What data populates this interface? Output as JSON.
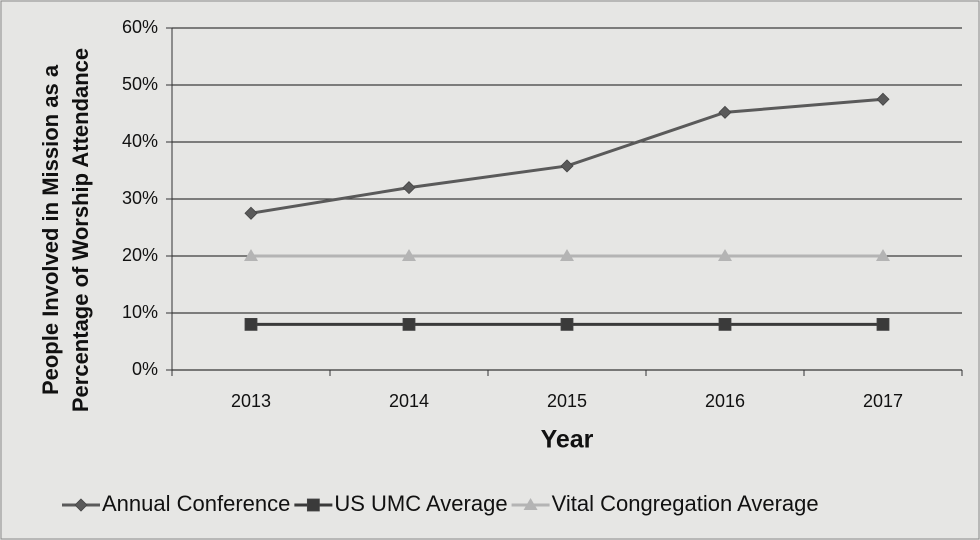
{
  "chart_data": {
    "type": "line",
    "ylabel": [
      "People Involved in Mission as a",
      "Percentage of Worship Attendance"
    ],
    "xlabel": "Year",
    "categories": [
      "2013",
      "2014",
      "2015",
      "2016",
      "2017"
    ],
    "series": [
      {
        "name": "Annual Conference",
        "color": "#5a5a5a",
        "marker": "diamond",
        "values": [
          27.5,
          32,
          35.8,
          45.2,
          47.5
        ]
      },
      {
        "name": "US UMC Average",
        "color": "#3a3a3a",
        "marker": "square",
        "values": [
          8,
          8,
          8,
          8,
          8
        ]
      },
      {
        "name": "Vital Congregation Average",
        "color": "#b4b4b4",
        "marker": "triangle",
        "values": [
          20,
          20,
          20,
          20,
          20
        ]
      }
    ],
    "ylim": [
      0,
      60
    ],
    "yticks": [
      {
        "value": 0,
        "label": "0%"
      },
      {
        "value": 10,
        "label": "10%"
      },
      {
        "value": 20,
        "label": "20%"
      },
      {
        "value": 30,
        "label": "30%"
      },
      {
        "value": 40,
        "label": "40%"
      },
      {
        "value": 50,
        "label": "50%"
      },
      {
        "value": 60,
        "label": "60%"
      }
    ],
    "grid": true,
    "legend": "bottom"
  }
}
